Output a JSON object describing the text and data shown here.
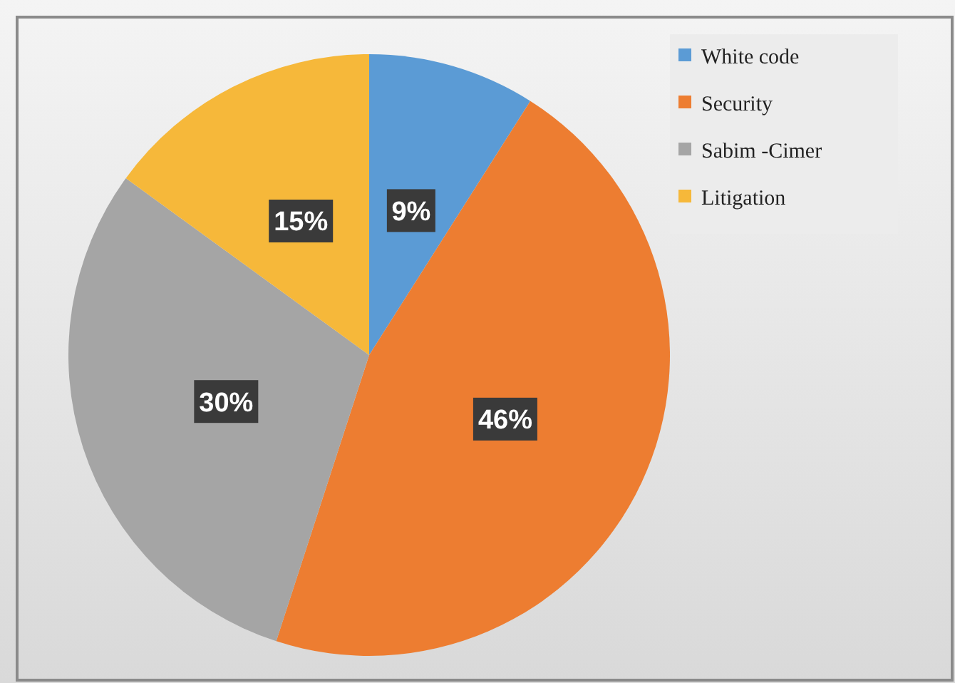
{
  "chart_data": {
    "type": "pie",
    "categories": [
      "White code",
      "Security",
      "Sabim -Cimer",
      "Litigation"
    ],
    "values": [
      9,
      46,
      30,
      15
    ],
    "colors": [
      "#5b9bd5",
      "#ed7d31",
      "#a5a5a5",
      "#f6b83a"
    ],
    "value_labels": [
      "9%",
      "46%",
      "30%",
      "15%"
    ],
    "legend": "top right"
  }
}
